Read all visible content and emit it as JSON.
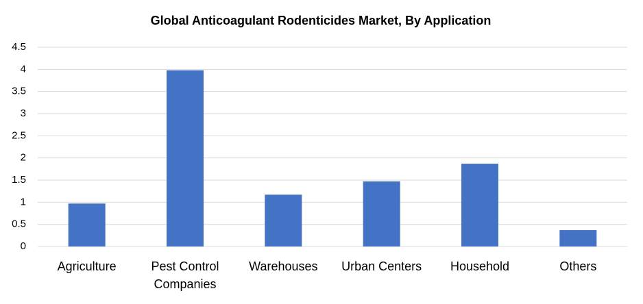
{
  "chart_data": {
    "type": "bar",
    "title": "Global Anticoagulant Rodenticides Market, By Application",
    "categories": [
      "Agriculture",
      "Pest Control Companies",
      "Warehouses",
      "Urban Centers",
      "Household",
      "Others"
    ],
    "values": [
      0.97,
      3.98,
      1.17,
      1.47,
      1.87,
      0.37
    ],
    "color": "#4472c4",
    "ylim": [
      0,
      4.5
    ],
    "yticks": [
      0,
      0.5,
      1,
      1.5,
      2,
      2.5,
      3,
      3.5,
      4,
      4.5
    ],
    "grid": true
  }
}
